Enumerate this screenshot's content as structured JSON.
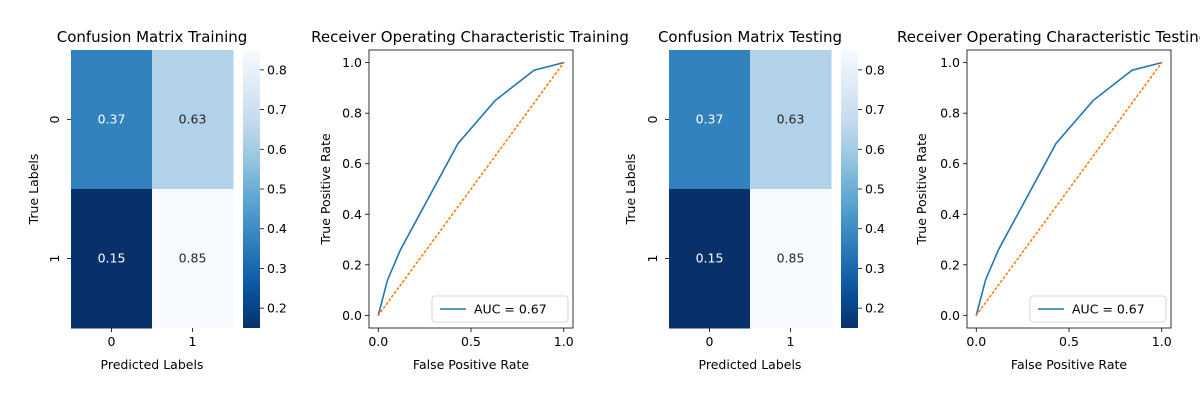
{
  "chart_data": [
    {
      "type": "heatmap",
      "title": "Confusion Matrix Training",
      "xlabel": "Predicted Labels",
      "ylabel": "True Labels",
      "x_categories": [
        "0",
        "1"
      ],
      "y_categories": [
        "0",
        "1"
      ],
      "values": [
        [
          0.37,
          0.63
        ],
        [
          0.15,
          0.85
        ]
      ],
      "cell_labels": [
        [
          "0.37",
          "0.63"
        ],
        [
          "0.15",
          "0.85"
        ]
      ],
      "colormap": "Blues_r",
      "colorbar": {
        "range": [
          0.15,
          0.85
        ],
        "ticks": [
          0.2,
          0.3,
          0.4,
          0.5,
          0.6,
          0.7,
          0.8
        ],
        "tick_labels": [
          "0.2",
          "0.3",
          "0.4",
          "0.5",
          "0.6",
          "0.7",
          "0.8"
        ]
      }
    },
    {
      "type": "line",
      "title": "Receiver Operating Characteristic Training",
      "xlabel": "False Positive Rate",
      "ylabel": "True Positive Rate",
      "xlim": [
        -0.05,
        1.05
      ],
      "ylim": [
        -0.05,
        1.05
      ],
      "x_ticks": [
        0.0,
        0.5,
        1.0
      ],
      "x_tick_labels": [
        "0.0",
        "0.5",
        "1.0"
      ],
      "y_ticks": [
        0.0,
        0.2,
        0.4,
        0.6,
        0.8,
        1.0
      ],
      "y_tick_labels": [
        "0.0",
        "0.2",
        "0.4",
        "0.6",
        "0.8",
        "1.0"
      ],
      "series": [
        {
          "name": "AUC = 0.67",
          "color": "#1f77b4",
          "style": "solid",
          "x": [
            0.0,
            0.05,
            0.12,
            0.43,
            0.63,
            0.84,
            1.0
          ],
          "y": [
            0.0,
            0.14,
            0.26,
            0.68,
            0.85,
            0.97,
            1.0
          ]
        },
        {
          "name": "",
          "color": "#ff7f0e",
          "style": "dotted",
          "x": [
            0.0,
            1.0
          ],
          "y": [
            0.0,
            1.0
          ]
        }
      ],
      "legend": "lower-right"
    },
    {
      "type": "heatmap",
      "title": "Confusion Matrix Testing",
      "xlabel": "Predicted Labels",
      "ylabel": "True Labels",
      "x_categories": [
        "0",
        "1"
      ],
      "y_categories": [
        "0",
        "1"
      ],
      "values": [
        [
          0.37,
          0.63
        ],
        [
          0.15,
          0.85
        ]
      ],
      "cell_labels": [
        [
          "0.37",
          "0.63"
        ],
        [
          "0.15",
          "0.85"
        ]
      ],
      "colormap": "Blues_r",
      "colorbar": {
        "range": [
          0.15,
          0.85
        ],
        "ticks": [
          0.2,
          0.3,
          0.4,
          0.5,
          0.6,
          0.7,
          0.8
        ],
        "tick_labels": [
          "0.2",
          "0.3",
          "0.4",
          "0.5",
          "0.6",
          "0.7",
          "0.8"
        ]
      }
    },
    {
      "type": "line",
      "title": "Receiver Operating Characteristic Testing",
      "xlabel": "False Positive Rate",
      "ylabel": "True Positive Rate",
      "xlim": [
        -0.05,
        1.05
      ],
      "ylim": [
        -0.05,
        1.05
      ],
      "x_ticks": [
        0.0,
        0.5,
        1.0
      ],
      "x_tick_labels": [
        "0.0",
        "0.5",
        "1.0"
      ],
      "y_ticks": [
        0.0,
        0.2,
        0.4,
        0.6,
        0.8,
        1.0
      ],
      "y_tick_labels": [
        "0.0",
        "0.2",
        "0.4",
        "0.6",
        "0.8",
        "1.0"
      ],
      "series": [
        {
          "name": "AUC = 0.67",
          "color": "#1f77b4",
          "style": "solid",
          "x": [
            0.0,
            0.05,
            0.12,
            0.43,
            0.63,
            0.84,
            1.0
          ],
          "y": [
            0.0,
            0.14,
            0.26,
            0.68,
            0.85,
            0.97,
            1.0
          ]
        },
        {
          "name": "",
          "color": "#ff7f0e",
          "style": "dotted",
          "x": [
            0.0,
            1.0
          ],
          "y": [
            0.0,
            1.0
          ]
        }
      ],
      "legend": "lower-right"
    }
  ]
}
